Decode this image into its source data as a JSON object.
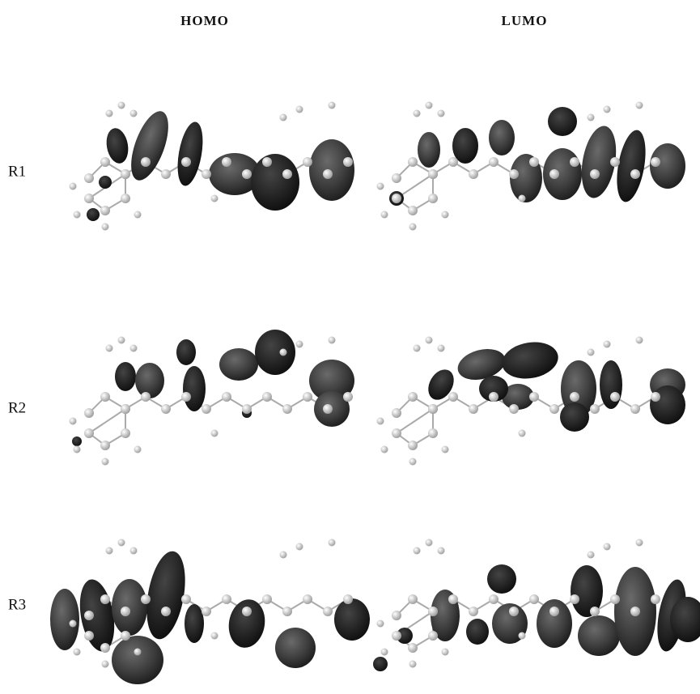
{
  "columns": [
    "HOMO",
    "LUMO"
  ],
  "rows": [
    "R1",
    "R2",
    "R3"
  ]
}
